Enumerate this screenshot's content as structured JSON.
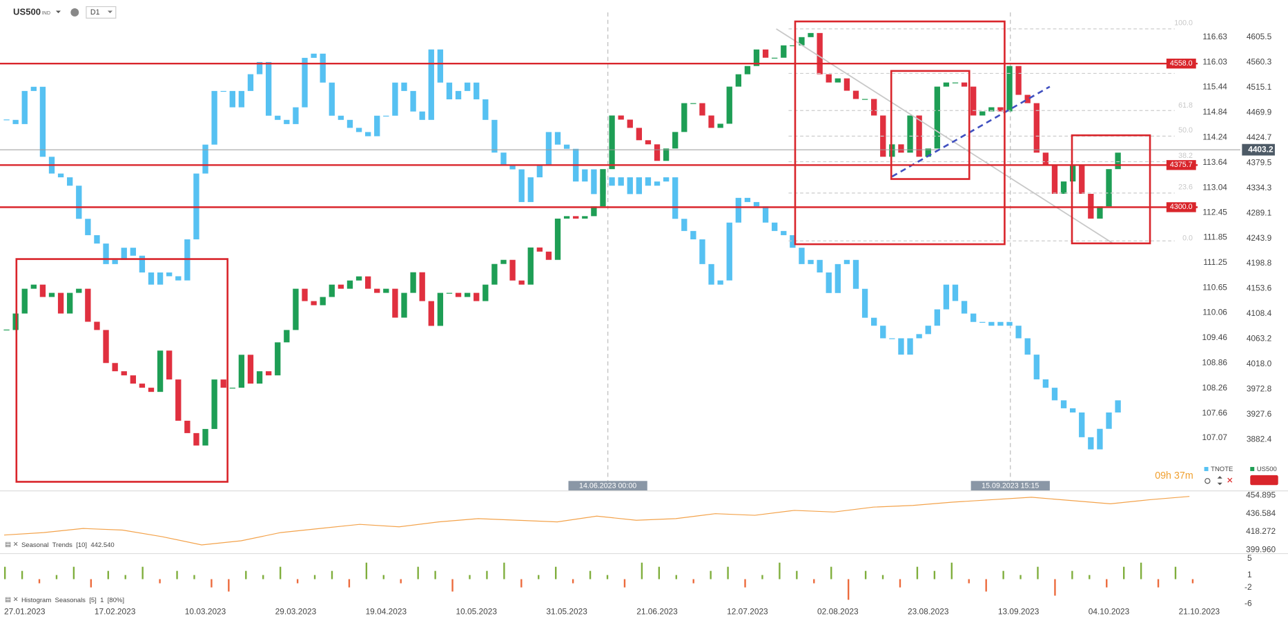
{
  "header": {
    "symbol": "US500",
    "market": "IND",
    "timeframe": "D1"
  },
  "crosshairs": [
    "14.06.2023 00:00",
    "15.09.2023 15:15"
  ],
  "fib_labels": [
    "100.0",
    "61.8",
    "50.0",
    "38.2",
    "23.6",
    "0.0"
  ],
  "countdown": "09h 37m",
  "chart_data": [
    {
      "type": "candlestick",
      "series": [
        {
          "name": "TNOTE",
          "color": "#56c1f2",
          "axis": "y2",
          "values": [
            114.66,
            114.56,
            115.35,
            115.45,
            113.78,
            113.38,
            113.29,
            113.09,
            112.3,
            111.91,
            111.71,
            111.22,
            111.32,
            111.61,
            111.42,
            111.02,
            110.73,
            111.02,
            110.93,
            110.83,
            111.81,
            113.38,
            114.07,
            115.35,
            115.35,
            114.96,
            115.35,
            115.75,
            116.04,
            114.76,
            114.66,
            114.56,
            114.96,
            116.14,
            116.24,
            115.55,
            114.76,
            114.66,
            114.47,
            114.37,
            114.27,
            114.76,
            114.76,
            115.55,
            115.35,
            114.86,
            114.66,
            116.34,
            115.55,
            115.15,
            115.35,
            115.55,
            115.15,
            114.66,
            113.88,
            113.58,
            113.48,
            112.7,
            113.29,
            113.58,
            114.37,
            114.07,
            113.97,
            113.19,
            113.48,
            112.89,
            113.29,
            113.09,
            113.29,
            112.89,
            113.29,
            113.09,
            113.19,
            113.29,
            112.3,
            112.01,
            111.81,
            111.22,
            110.73,
            110.83,
            112.21,
            112.8,
            112.7,
            112.6,
            112.21,
            112.01,
            111.91,
            111.61,
            111.22,
            111.32,
            111.02,
            110.53,
            111.22,
            111.32,
            110.63,
            109.94,
            109.75,
            109.45,
            109.45,
            109.06,
            109.45,
            109.55,
            109.75,
            110.14,
            110.73,
            110.34,
            110.04,
            109.84,
            109.84,
            109.75,
            109.84,
            109.75,
            109.45,
            109.06,
            108.47,
            108.27,
            107.97,
            107.78,
            107.68,
            107.09,
            106.8,
            107.29,
            107.68,
            107.97
          ]
        },
        {
          "name": "US500",
          "color": "#1e9e55",
          "down_color": "#e0303f",
          "values": [
            4079.4,
            4109.0,
            4153.5,
            4160.9,
            4138.7,
            4146.1,
            4109.0,
            4146.1,
            4153.5,
            4094.2,
            4079.4,
            4020.1,
            4005.3,
            3997.9,
            3983.1,
            3975.7,
            3968.2,
            4042.4,
            3990.5,
            3916.4,
            3894.2,
            3871.9,
            3901.6,
            3990.5,
            3975.7,
            3975.7,
            4034.9,
            3983.1,
            4005.3,
            3997.9,
            4057.2,
            4079.4,
            4153.5,
            4131.3,
            4123.9,
            4138.7,
            4160.9,
            4153.5,
            4168.3,
            4175.7,
            4153.5,
            4146.1,
            4153.5,
            4101.6,
            4146.1,
            4183.1,
            4131.3,
            4086.8,
            4146.1,
            4146.1,
            4138.7,
            4146.1,
            4131.3,
            4160.9,
            4198.0,
            4205.4,
            4168.3,
            4160.9,
            4227.6,
            4220.2,
            4205.4,
            4279.5,
            4283.9,
            4279.5,
            4283.9,
            4301.7,
            4368.4,
            4464.7,
            4457.3,
            4442.5,
            4420.3,
            4412.9,
            4383.2,
            4405.4,
            4435.1,
            4486.9,
            4486.9,
            4464.7,
            4442.5,
            4449.9,
            4516.6,
            4538.8,
            4553.6,
            4583.3,
            4568.5,
            4568.5,
            4590.7,
            4590.7,
            4605.5,
            4612.9,
            4538.8,
            4524.0,
            4531.4,
            4509.2,
            4494.4,
            4494.4,
            4464.7,
            4390.6,
            4412.9,
            4398.0,
            4464.7,
            4390.6,
            4405.4,
            4516.6,
            4524.0,
            4524.0,
            4516.6,
            4464.7,
            4472.1,
            4479.5,
            4472.1,
            4553.6,
            4501.8,
            4486.9,
            4398.0,
            4375.8,
            4324.0,
            4346.2,
            4375.8,
            4324.0,
            4279.5,
            4301.7,
            4368.4,
            4398.0
          ]
        }
      ],
      "xlim": [
        -0.73,
        136.55
      ],
      "xticks": [
        {
          "value": 2,
          "label": "27.01.2023"
        },
        {
          "value": 12,
          "label": "17.02.2023"
        },
        {
          "value": 22,
          "label": "10.03.2023"
        },
        {
          "value": 32,
          "label": "29.03.2023"
        },
        {
          "value": 42,
          "label": "19.04.2023"
        },
        {
          "value": 52,
          "label": "10.05.2023"
        },
        {
          "value": 62,
          "label": "31.05.2023"
        },
        {
          "value": 72,
          "label": "21.06.2023"
        },
        {
          "value": 82,
          "label": "12.07.2023"
        },
        {
          "value": 92,
          "label": "02.08.2023"
        },
        {
          "value": 102,
          "label": "23.08.2023"
        },
        {
          "value": 112,
          "label": "13.09.2023"
        },
        {
          "value": 122,
          "label": "04.10.2023"
        },
        {
          "value": 132,
          "label": "21.10.2023"
        }
      ],
      "ylim": [
        3790.4,
        4672.2
      ],
      "yticks": [
        4605.5,
        4560.3,
        4515.1,
        4469.9,
        4424.7,
        4379.5,
        4334.3,
        4289.1,
        4243.9,
        4198.8,
        4153.6,
        4108.4,
        4063.2,
        {
          "value": 4018.0,
          "label": "4018.0"
        },
        3972.8,
        3927.6,
        3882.4
      ],
      "y2lim": [
        105.81,
        117.52
      ],
      "y2ticks": [
        116.63,
        116.03,
        115.44,
        114.84,
        114.24,
        113.64,
        113.04,
        112.45,
        111.85,
        111.25,
        110.65,
        110.06,
        109.46,
        108.86,
        108.26,
        107.66,
        107.07
      ],
      "levels": [
        {
          "value": 4558,
          "label": "4558.0"
        },
        4375.7,
        {
          "value": 4300,
          "label": "4300.0"
        }
      ],
      "level_color": "#d9252b",
      "last_price": 4403.2
    },
    {
      "type": "line",
      "title": "Seasonal  Trends  [10]  442.540",
      "color": "#f3a24a",
      "values": [
        414.94,
        417.44,
        421.6,
        419.94,
        413.28,
        404.96,
        409.12,
        417.44,
        421.6,
        425.77,
        423.27,
        428.26,
        431.59,
        429.93,
        428.26,
        434.09,
        429.93,
        431.59,
        436.58,
        434.92,
        439.91,
        438.25,
        443.24,
        444.91,
        448.24,
        450.73,
        453.23,
        449.9,
        446.57,
        450.73,
        454.06
      ],
      "ylim": [
        397,
        458
      ],
      "yticks": [
        454.895,
        436.584,
        418.272,
        {
          "value": 399.96,
          "label": "399.960"
        }
      ]
    },
    {
      "type": "histogram",
      "title": "Histogram  Seasonals  [5]  1  [80%]",
      "color": "#7fae3c",
      "down_color": "#ec6a3c",
      "values": [
        3,
        2,
        -1,
        1,
        3,
        -2,
        2,
        1,
        3,
        -1,
        2,
        1,
        -2,
        -3,
        2,
        1,
        3,
        -1,
        1,
        2,
        -2,
        4,
        1,
        -1,
        3,
        2,
        -3,
        1,
        2,
        4,
        -2,
        1,
        3,
        -1,
        2,
        1,
        -2,
        4,
        3,
        1,
        -1,
        2,
        3,
        -2,
        1,
        4,
        2,
        -1,
        3,
        -5,
        2,
        1,
        -2,
        3,
        2,
        4,
        -1,
        -3,
        2,
        1,
        3,
        -4,
        2,
        1,
        -2,
        3,
        4,
        -2,
        3,
        -1
      ],
      "ylim": [
        -7,
        6
      ],
      "yticks": [
        5,
        1,
        -2,
        -6
      ]
    }
  ]
}
